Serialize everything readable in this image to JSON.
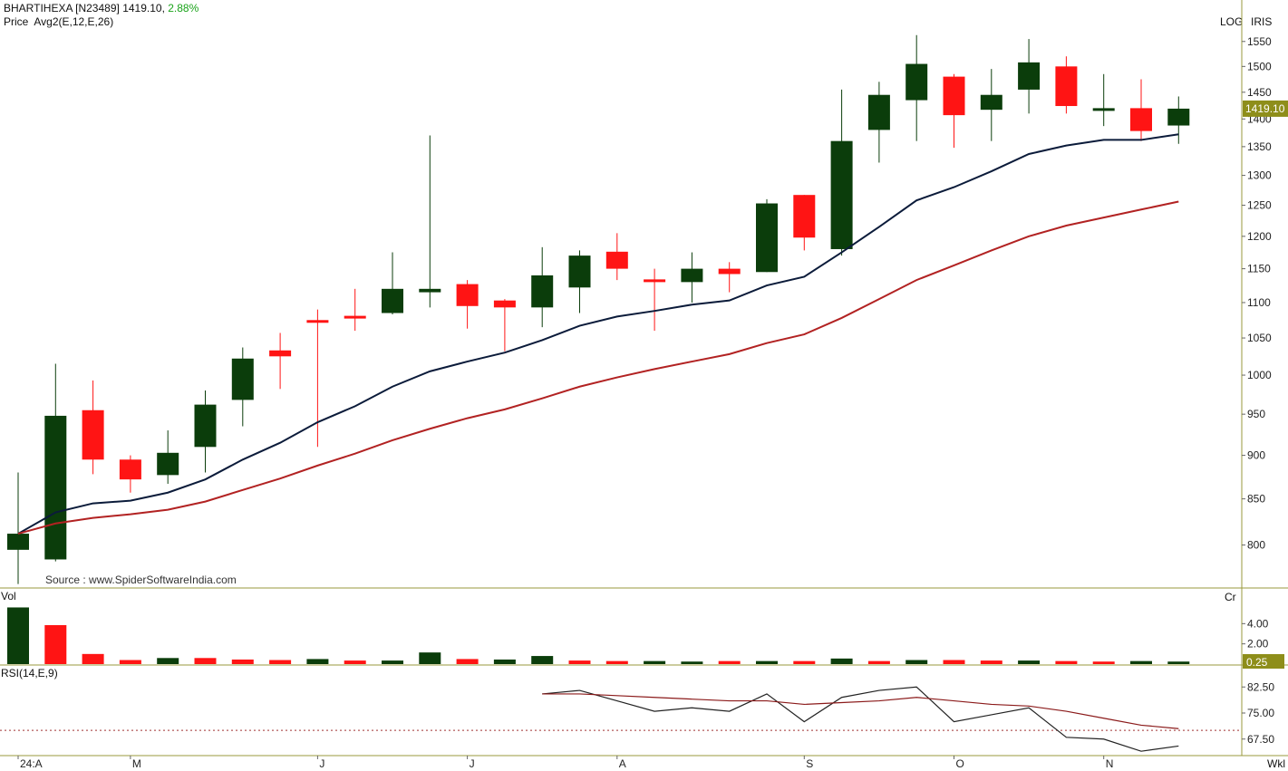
{
  "header": {
    "symbol": "BHARTIHEXA [N23489]",
    "last_price": "1419.10,",
    "change_pct": "2.88%",
    "price_label": "Price",
    "avg_label": "Avg2(E,12,E,26)",
    "log_label": "LOG",
    "iris_label": "IRIS"
  },
  "source_note": "Source : www.SpiderSoftwareIndia.com",
  "volume_panel": {
    "label": "Vol",
    "unit": "Cr",
    "current_label": "0.25"
  },
  "rsi_panel": {
    "label": "RSI(14,E,9)"
  },
  "period_label": "Wkl",
  "colors": {
    "up": "#0b3d0b",
    "down": "#ff1414",
    "ema12": "#0b1b3a",
    "ema26": "#b22222",
    "rsi_line": "#222222",
    "rsi_signal": "#8b1a1a",
    "separator": "#9a9a3c",
    "price_tag_bg": "#8e8e1a"
  },
  "chart_data": [
    {
      "type": "candlestick",
      "title": "BHARTIHEXA [N23489]",
      "scale": "log",
      "ylim": [
        757,
        1570
      ],
      "y_ticks": [
        800,
        850,
        900,
        950,
        1000,
        1050,
        1100,
        1150,
        1200,
        1250,
        1300,
        1350,
        1400,
        1450,
        1500,
        1550
      ],
      "last_price": 1419.1,
      "last_price_label": "1419.10",
      "x_labels": [
        {
          "index": 0,
          "label": "24:A"
        },
        {
          "index": 3,
          "label": "M"
        },
        {
          "index": 8,
          "label": "J"
        },
        {
          "index": 12,
          "label": "J"
        },
        {
          "index": 16,
          "label": "A"
        },
        {
          "index": 21,
          "label": "S"
        },
        {
          "index": 25,
          "label": "O"
        },
        {
          "index": 29,
          "label": "N"
        }
      ],
      "candles": [
        {
          "o": 795,
          "h": 880,
          "l": 760,
          "c": 812
        },
        {
          "o": 785,
          "h": 1015,
          "l": 783,
          "c": 948
        },
        {
          "o": 955,
          "h": 993,
          "l": 878,
          "c": 895
        },
        {
          "o": 895,
          "h": 900,
          "l": 857,
          "c": 872
        },
        {
          "o": 877,
          "h": 930,
          "l": 867,
          "c": 903
        },
        {
          "o": 910,
          "h": 980,
          "l": 880,
          "c": 962
        },
        {
          "o": 968,
          "h": 1037,
          "l": 935,
          "c": 1022
        },
        {
          "o": 1033,
          "h": 1057,
          "l": 982,
          "c": 1025
        },
        {
          "o": 1075,
          "h": 1090,
          "l": 910,
          "c": 1072
        },
        {
          "o": 1081,
          "h": 1120,
          "l": 1060,
          "c": 1078
        },
        {
          "o": 1085,
          "h": 1175,
          "l": 1083,
          "c": 1120
        },
        {
          "o": 1115,
          "h": 1370,
          "l": 1093,
          "c": 1120
        },
        {
          "o": 1127,
          "h": 1133,
          "l": 1063,
          "c": 1095
        },
        {
          "o": 1103,
          "h": 1105,
          "l": 1032,
          "c": 1093
        },
        {
          "o": 1093,
          "h": 1183,
          "l": 1065,
          "c": 1140
        },
        {
          "o": 1122,
          "h": 1178,
          "l": 1085,
          "c": 1170
        },
        {
          "o": 1176,
          "h": 1205,
          "l": 1133,
          "c": 1150
        },
        {
          "o": 1134,
          "h": 1150,
          "l": 1060,
          "c": 1132
        },
        {
          "o": 1130,
          "h": 1175,
          "l": 1100,
          "c": 1150
        },
        {
          "o": 1150,
          "h": 1160,
          "l": 1115,
          "c": 1142
        },
        {
          "o": 1145,
          "h": 1260,
          "l": 1145,
          "c": 1253
        },
        {
          "o": 1267,
          "h": 1267,
          "l": 1178,
          "c": 1198
        },
        {
          "o": 1180,
          "h": 1455,
          "l": 1170,
          "c": 1360
        },
        {
          "o": 1380,
          "h": 1470,
          "l": 1322,
          "c": 1445
        },
        {
          "o": 1435,
          "h": 1563,
          "l": 1360,
          "c": 1505
        },
        {
          "o": 1480,
          "h": 1485,
          "l": 1348,
          "c": 1407
        },
        {
          "o": 1417,
          "h": 1495,
          "l": 1360,
          "c": 1445
        },
        {
          "o": 1455,
          "h": 1555,
          "l": 1410,
          "c": 1508
        },
        {
          "o": 1500,
          "h": 1520,
          "l": 1410,
          "c": 1424
        },
        {
          "o": 1420,
          "h": 1485,
          "l": 1387,
          "c": 1420
        },
        {
          "o": 1420,
          "h": 1475,
          "l": 1360,
          "c": 1378
        },
        {
          "o": 1388,
          "h": 1442,
          "l": 1355,
          "c": 1419.1
        }
      ],
      "series": [
        {
          "values": [
            812,
            835,
            845,
            848,
            857,
            872,
            895,
            915,
            940,
            960,
            985,
            1005,
            1018,
            1030,
            1047,
            1067,
            1080,
            1088,
            1097,
            1103,
            1125,
            1138,
            1175,
            1215,
            1258,
            1280,
            1307,
            1337,
            1352,
            1362,
            1362,
            1372
          ]
        },
        {
          "values": [
            812,
            823,
            829,
            833,
            838,
            847,
            860,
            873,
            888,
            902,
            918,
            932,
            945,
            956,
            970,
            985,
            997,
            1008,
            1018,
            1028,
            1043,
            1055,
            1078,
            1105,
            1133,
            1155,
            1178,
            1200,
            1217,
            1230,
            1243,
            1256
          ]
        }
      ]
    },
    {
      "type": "bar",
      "ylim": [
        0,
        6
      ],
      "y_ticks": [
        2.0,
        4.0
      ],
      "y_tick_labels": [
        "2.00",
        "4.00"
      ],
      "values": [
        5.6,
        3.85,
        1.0,
        0.4,
        0.6,
        0.6,
        0.45,
        0.4,
        0.5,
        0.35,
        0.35,
        1.15,
        0.5,
        0.45,
        0.8,
        0.35,
        0.3,
        0.3,
        0.25,
        0.3,
        0.3,
        0.3,
        0.55,
        0.3,
        0.4,
        0.4,
        0.35,
        0.35,
        0.3,
        0.25,
        0.3,
        0.25
      ],
      "colors_up": [
        true,
        false,
        false,
        false,
        true,
        false,
        false,
        false,
        true,
        false,
        true,
        true,
        false,
        true,
        true,
        false,
        false,
        true,
        true,
        false,
        true,
        false,
        true,
        false,
        true,
        false,
        false,
        true,
        false,
        false,
        true,
        true
      ]
    },
    {
      "type": "line",
      "ylim": [
        63,
        87
      ],
      "y_ticks": [
        67.5,
        75.0,
        82.5
      ],
      "y_tick_labels": [
        "67.50",
        "75.00",
        "82.50"
      ],
      "reference_line": 70,
      "start_index": 14,
      "series": [
        {
          "values": [
            80.5,
            81.5,
            78.5,
            75.5,
            76.5,
            75.5,
            80.5,
            72.5,
            79.5,
            81.5,
            82.5,
            72.5,
            74.5,
            76.5,
            68.0,
            67.5,
            64.0,
            65.5
          ]
        },
        {
          "values": [
            80.5,
            80.5,
            80.0,
            79.5,
            79.0,
            78.5,
            78.5,
            77.5,
            78.0,
            78.5,
            79.5,
            78.5,
            77.5,
            77.0,
            75.5,
            73.5,
            71.5,
            70.5
          ]
        }
      ]
    }
  ]
}
